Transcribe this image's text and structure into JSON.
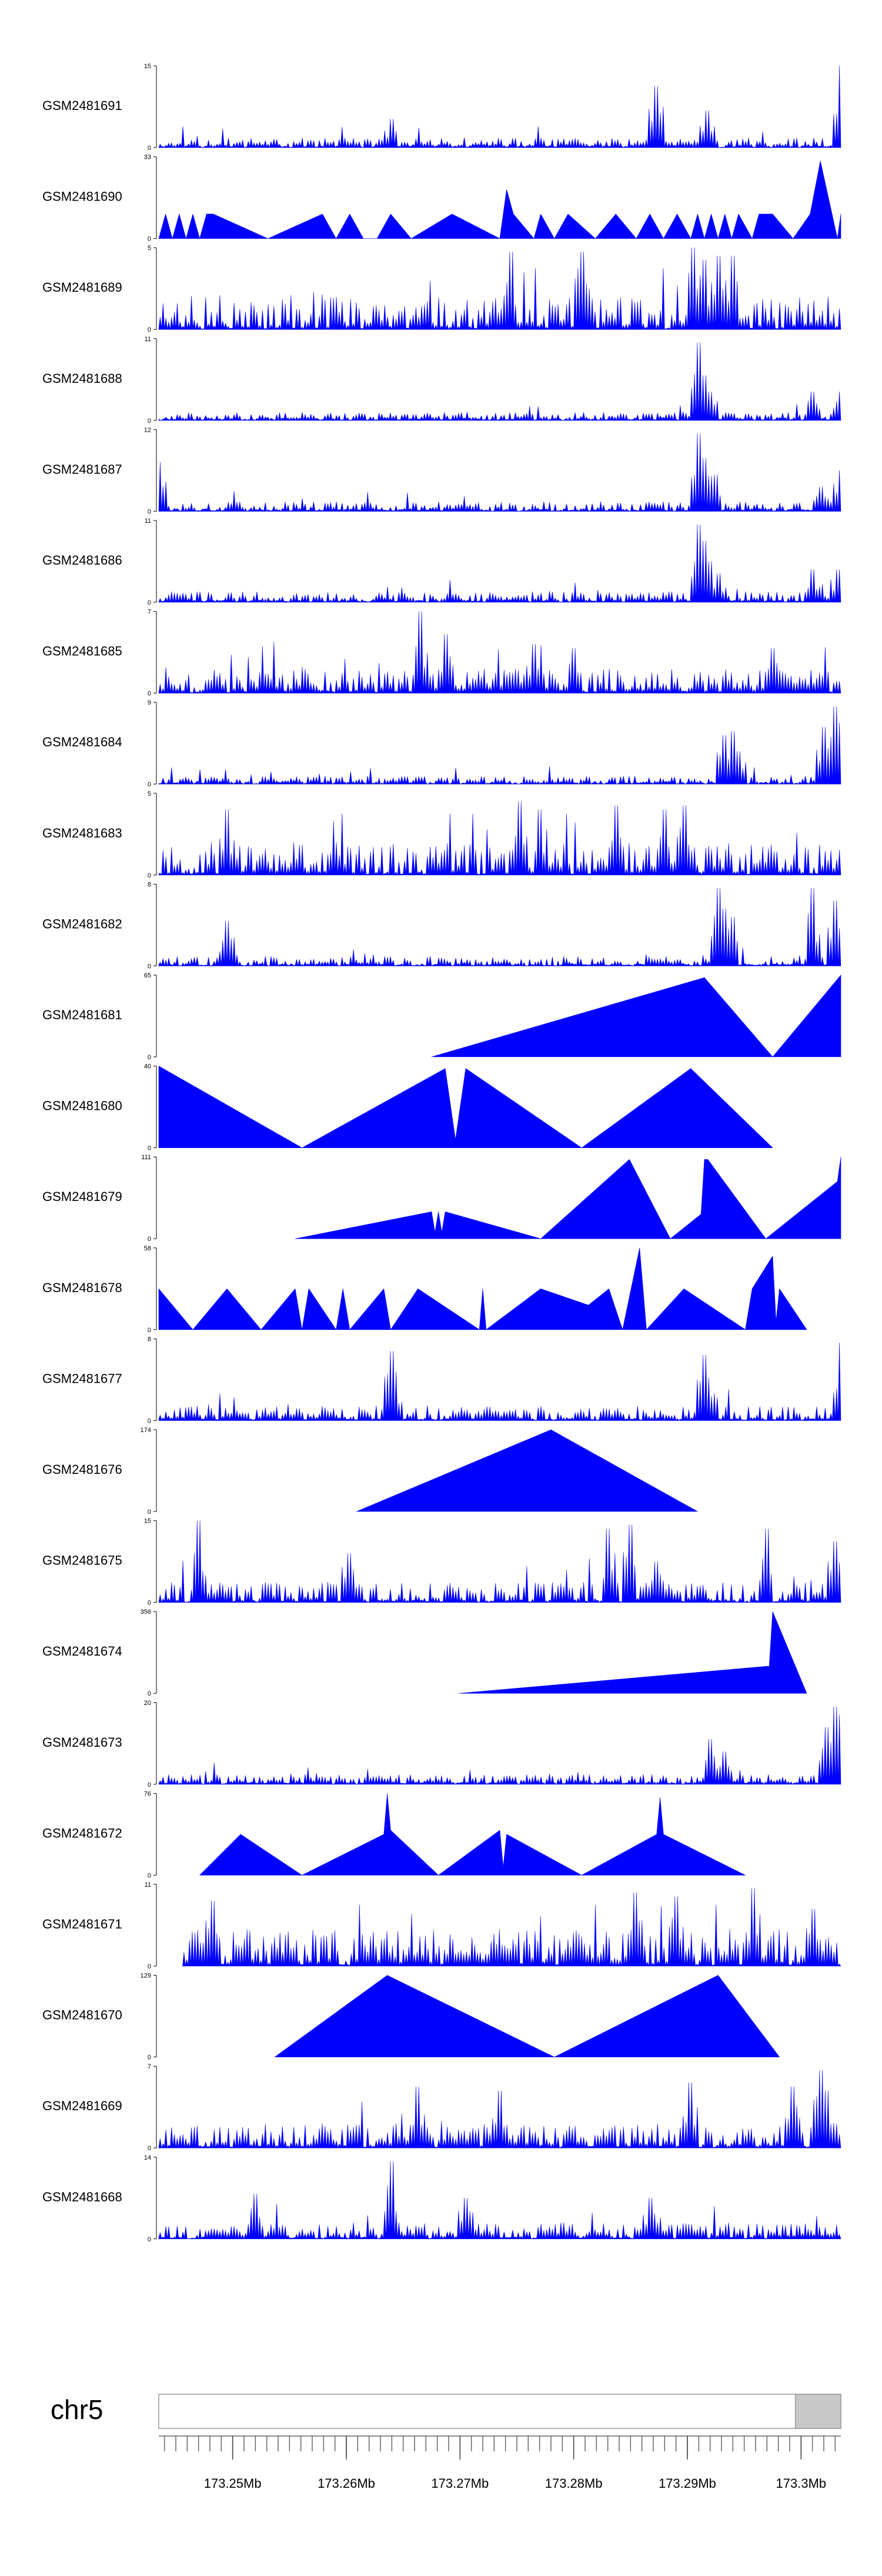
{
  "chart_data": {
    "type": "area",
    "title": "",
    "chromosome": "chr5",
    "x_unit": "Mb",
    "x_range": [
      173.2435,
      173.3035
    ],
    "x_ticks": [
      {
        "value": 173.25,
        "label": "173.25Mb"
      },
      {
        "value": 173.26,
        "label": "173.26Mb"
      },
      {
        "value": 173.27,
        "label": "173.27Mb"
      },
      {
        "value": 173.28,
        "label": "173.28Mb"
      },
      {
        "value": 173.29,
        "label": "173.29Mb"
      },
      {
        "value": 173.3,
        "label": "173.3Mb"
      }
    ],
    "ideogram_highlight_range": [
      173.2995,
      173.3035
    ],
    "colors": {
      "fill": "#0000ff",
      "axis": "#000000",
      "ideogram_bg": "#ffffff",
      "ideogram_highlight": "#c8c8c8",
      "ideogram_border": "#999999"
    },
    "tracks": [
      {
        "name": "GSM2481691",
        "ymax": 15,
        "ymin": 0,
        "style": "noise",
        "seed": 11,
        "base": 0.12,
        "peaks": [
          [
            0.34,
            0.35
          ],
          [
            0.73,
            0.75
          ],
          [
            0.805,
            0.45
          ],
          [
            0.998,
            1.0
          ]
        ]
      },
      {
        "name": "GSM2481690",
        "ymax": 33,
        "ymin": 0,
        "style": "poly",
        "x": [
          0,
          0.01,
          0.02,
          0.03,
          0.04,
          0.05,
          0.06,
          0.07,
          0.08,
          0.16,
          0.24,
          0.26,
          0.28,
          0.3,
          0.32,
          0.34,
          0.37,
          0.43,
          0.5,
          0.51,
          0.52,
          0.55,
          0.56,
          0.58,
          0.6,
          0.64,
          0.67,
          0.7,
          0.72,
          0.74,
          0.76,
          0.78,
          0.79,
          0.8,
          0.81,
          0.82,
          0.83,
          0.84,
          0.85,
          0.87,
          0.88,
          0.9,
          0.93,
          0.955,
          0.97,
          0.995,
          1.0
        ],
        "y": [
          0,
          0.3,
          0,
          0.3,
          0,
          0.3,
          0,
          0.3,
          0.3,
          0,
          0.3,
          0,
          0.3,
          0,
          0,
          0.3,
          0,
          0.3,
          0,
          0.6,
          0.3,
          0,
          0.3,
          0,
          0.3,
          0,
          0.3,
          0,
          0.3,
          0,
          0.3,
          0,
          0.3,
          0,
          0.3,
          0,
          0.3,
          0,
          0.3,
          0,
          0.3,
          0.3,
          0,
          0.3,
          0.95,
          0,
          0.3
        ]
      },
      {
        "name": "GSM2481689",
        "ymax": 5,
        "ymin": 0,
        "style": "noise",
        "seed": 23,
        "base": 0.42,
        "peaks": [
          [
            0.515,
            0.95
          ],
          [
            0.62,
            0.95
          ],
          [
            0.785,
            1.0
          ],
          [
            0.8,
            0.85
          ],
          [
            0.82,
            0.9
          ],
          [
            0.84,
            0.9
          ]
        ]
      },
      {
        "name": "GSM2481688",
        "ymax": 11,
        "ymin": 0,
        "style": "noise",
        "seed": 31,
        "base": 0.1,
        "peaks": [
          [
            0.792,
            0.8
          ],
          [
            0.79,
            0.95
          ],
          [
            0.8,
            0.55
          ],
          [
            0.81,
            0.35
          ],
          [
            0.96,
            0.35
          ],
          [
            0.998,
            0.35
          ]
        ]
      },
      {
        "name": "GSM2481687",
        "ymax": 12,
        "ymin": 0,
        "style": "noise",
        "seed": 37,
        "base": 0.12,
        "peaks": [
          [
            0.0,
            0.6
          ],
          [
            0.79,
            0.95
          ],
          [
            0.8,
            0.65
          ],
          [
            0.815,
            0.45
          ],
          [
            0.97,
            0.3
          ],
          [
            0.998,
            0.5
          ]
        ]
      },
      {
        "name": "GSM2481686",
        "ymax": 11,
        "ymin": 0,
        "style": "noise",
        "seed": 41,
        "base": 0.13,
        "peaks": [
          [
            0.79,
            0.95
          ],
          [
            0.8,
            0.75
          ],
          [
            0.81,
            0.5
          ],
          [
            0.82,
            0.35
          ],
          [
            0.96,
            0.4
          ],
          [
            0.995,
            0.4
          ]
        ]
      },
      {
        "name": "GSM2481685",
        "ymax": 7,
        "ymin": 0,
        "style": "noise",
        "seed": 43,
        "base": 0.3,
        "peaks": [
          [
            0.385,
            1.0
          ],
          [
            0.42,
            0.72
          ],
          [
            0.55,
            0.6
          ],
          [
            0.61,
            0.55
          ],
          [
            0.9,
            0.55
          ]
        ]
      },
      {
        "name": "GSM2481684",
        "ymax": 9,
        "ymin": 0,
        "style": "noise",
        "seed": 47,
        "base": 0.1,
        "peaks": [
          [
            0.83,
            0.6
          ],
          [
            0.84,
            0.65
          ],
          [
            0.85,
            0.4
          ],
          [
            0.975,
            0.7
          ],
          [
            0.99,
            0.95
          ],
          [
            0.995,
            0.75
          ]
        ]
      },
      {
        "name": "GSM2481683",
        "ymax": 5,
        "ymin": 0,
        "style": "noise",
        "seed": 53,
        "base": 0.4,
        "peaks": [
          [
            0.1,
            0.8
          ],
          [
            0.53,
            0.9
          ],
          [
            0.56,
            0.8
          ],
          [
            0.67,
            0.85
          ],
          [
            0.74,
            0.8
          ],
          [
            0.77,
            0.85
          ]
        ]
      },
      {
        "name": "GSM2481682",
        "ymax": 8,
        "ymin": 0,
        "style": "noise",
        "seed": 59,
        "base": 0.12,
        "peaks": [
          [
            0.1,
            0.55
          ],
          [
            0.82,
            0.95
          ],
          [
            0.83,
            0.7
          ],
          [
            0.84,
            0.6
          ],
          [
            0.96,
            0.95
          ],
          [
            0.99,
            0.8
          ]
        ]
      },
      {
        "name": "GSM2481681",
        "ymax": 65,
        "ymin": 0,
        "style": "poly",
        "x": [
          0.4,
          0.8,
          0.9,
          1.0
        ],
        "y": [
          0,
          0.97,
          0,
          1.0
        ]
      },
      {
        "name": "GSM2481680",
        "ymax": 40,
        "ymin": 0,
        "style": "poly",
        "x": [
          0,
          0.21,
          0.42,
          0.435,
          0.45,
          0.62,
          0.78,
          0.9
        ],
        "y": [
          1.0,
          0,
          0.97,
          0.1,
          0.97,
          0,
          0.97,
          0
        ]
      },
      {
        "name": "GSM2481679",
        "ymax": 111,
        "ymin": 0,
        "style": "poly",
        "x": [
          0.2,
          0.4,
          0.405,
          0.41,
          0.415,
          0.42,
          0.56,
          0.69,
          0.75,
          0.795,
          0.8,
          0.805,
          0.89,
          0.995,
          1.0
        ],
        "y": [
          0,
          0.33,
          0.08,
          0.33,
          0.08,
          0.33,
          0,
          0.97,
          0,
          0.3,
          0.97,
          0.97,
          0,
          0.7,
          1.0
        ]
      },
      {
        "name": "GSM2481678",
        "ymax": 58,
        "ymin": 0,
        "style": "poly",
        "x": [
          0,
          0.05,
          0.1,
          0.15,
          0.2,
          0.21,
          0.22,
          0.26,
          0.27,
          0.28,
          0.33,
          0.34,
          0.38,
          0.47,
          0.475,
          0.48,
          0.56,
          0.63,
          0.66,
          0.68,
          0.705,
          0.715,
          0.77,
          0.86,
          0.87,
          0.9,
          0.905,
          0.91,
          0.95
        ],
        "y": [
          0.5,
          0,
          0.5,
          0,
          0.5,
          0,
          0.5,
          0,
          0.5,
          0,
          0.5,
          0,
          0.5,
          0,
          0.5,
          0,
          0.5,
          0.3,
          0.5,
          0,
          1.0,
          0,
          0.5,
          0,
          0.5,
          0.9,
          0.1,
          0.5,
          0
        ]
      },
      {
        "name": "GSM2481677",
        "ymax": 8,
        "ymin": 0,
        "style": "noise",
        "seed": 61,
        "base": 0.18,
        "peaks": [
          [
            0.34,
            0.85
          ],
          [
            0.345,
            0.6
          ],
          [
            0.8,
            0.8
          ],
          [
            0.998,
            0.95
          ]
        ]
      },
      {
        "name": "GSM2481676",
        "ymax": 174,
        "ymin": 0,
        "style": "poly",
        "x": [
          0.29,
          0.575,
          0.79
        ],
        "y": [
          0,
          1.0,
          0
        ]
      },
      {
        "name": "GSM2481675",
        "ymax": 15,
        "ymin": 0,
        "style": "noise",
        "seed": 67,
        "base": 0.25,
        "peaks": [
          [
            0.06,
            1.0
          ],
          [
            0.28,
            0.6
          ],
          [
            0.66,
            0.9
          ],
          [
            0.69,
            0.95
          ],
          [
            0.73,
            0.5
          ],
          [
            0.89,
            0.9
          ],
          [
            0.99,
            0.75
          ]
        ]
      },
      {
        "name": "GSM2481674",
        "ymax": 356,
        "ymin": 0,
        "style": "poly",
        "x": [
          0.44,
          0.89,
          0.895,
          0.9,
          0.95
        ],
        "y": [
          0,
          0.33,
          0.33,
          1.0,
          0
        ]
      },
      {
        "name": "GSM2481673",
        "ymax": 20,
        "ymin": 0,
        "style": "noise",
        "seed": 71,
        "base": 0.12,
        "peaks": [
          [
            0.81,
            0.55
          ],
          [
            0.83,
            0.4
          ],
          [
            0.98,
            0.7
          ],
          [
            0.99,
            0.95
          ],
          [
            0.997,
            0.85
          ]
        ]
      },
      {
        "name": "GSM2481672",
        "ymax": 76,
        "ymin": 0,
        "style": "poly",
        "x": [
          0.06,
          0.12,
          0.21,
          0.33,
          0.335,
          0.34,
          0.41,
          0.5,
          0.505,
          0.51,
          0.62,
          0.73,
          0.735,
          0.74,
          0.86
        ],
        "y": [
          0,
          0.5,
          0,
          0.5,
          1.0,
          0.55,
          0,
          0.55,
          0.1,
          0.5,
          0,
          0.5,
          0.95,
          0.5,
          0
        ]
      },
      {
        "name": "GSM2481671",
        "ymax": 11,
        "ymin": 0,
        "style": "noise",
        "seed": 73,
        "base": 0.45,
        "peaks": [
          [
            0.08,
            0.8
          ],
          [
            0.7,
            0.9
          ],
          [
            0.76,
            0.85
          ],
          [
            0.87,
            0.95
          ],
          [
            0.96,
            0.7
          ]
        ],
        "start": 0.035
      },
      {
        "name": "GSM2481670",
        "ymax": 129,
        "ymin": 0,
        "style": "poly",
        "x": [
          0.17,
          0.335,
          0.58,
          0.82,
          0.91
        ],
        "y": [
          0,
          1.0,
          0,
          1.0,
          0
        ]
      },
      {
        "name": "GSM2481669",
        "ymax": 7,
        "ymin": 0,
        "style": "noise",
        "seed": 79,
        "base": 0.3,
        "peaks": [
          [
            0.38,
            0.75
          ],
          [
            0.5,
            0.7
          ],
          [
            0.78,
            0.8
          ],
          [
            0.93,
            0.75
          ],
          [
            0.97,
            0.95
          ],
          [
            0.98,
            0.7
          ]
        ]
      },
      {
        "name": "GSM2481668",
        "ymax": 14,
        "ymin": 0,
        "style": "noise",
        "seed": 83,
        "base": 0.2,
        "peaks": [
          [
            0.34,
            0.95
          ],
          [
            0.14,
            0.55
          ],
          [
            0.45,
            0.5
          ],
          [
            0.72,
            0.5
          ]
        ]
      }
    ]
  }
}
